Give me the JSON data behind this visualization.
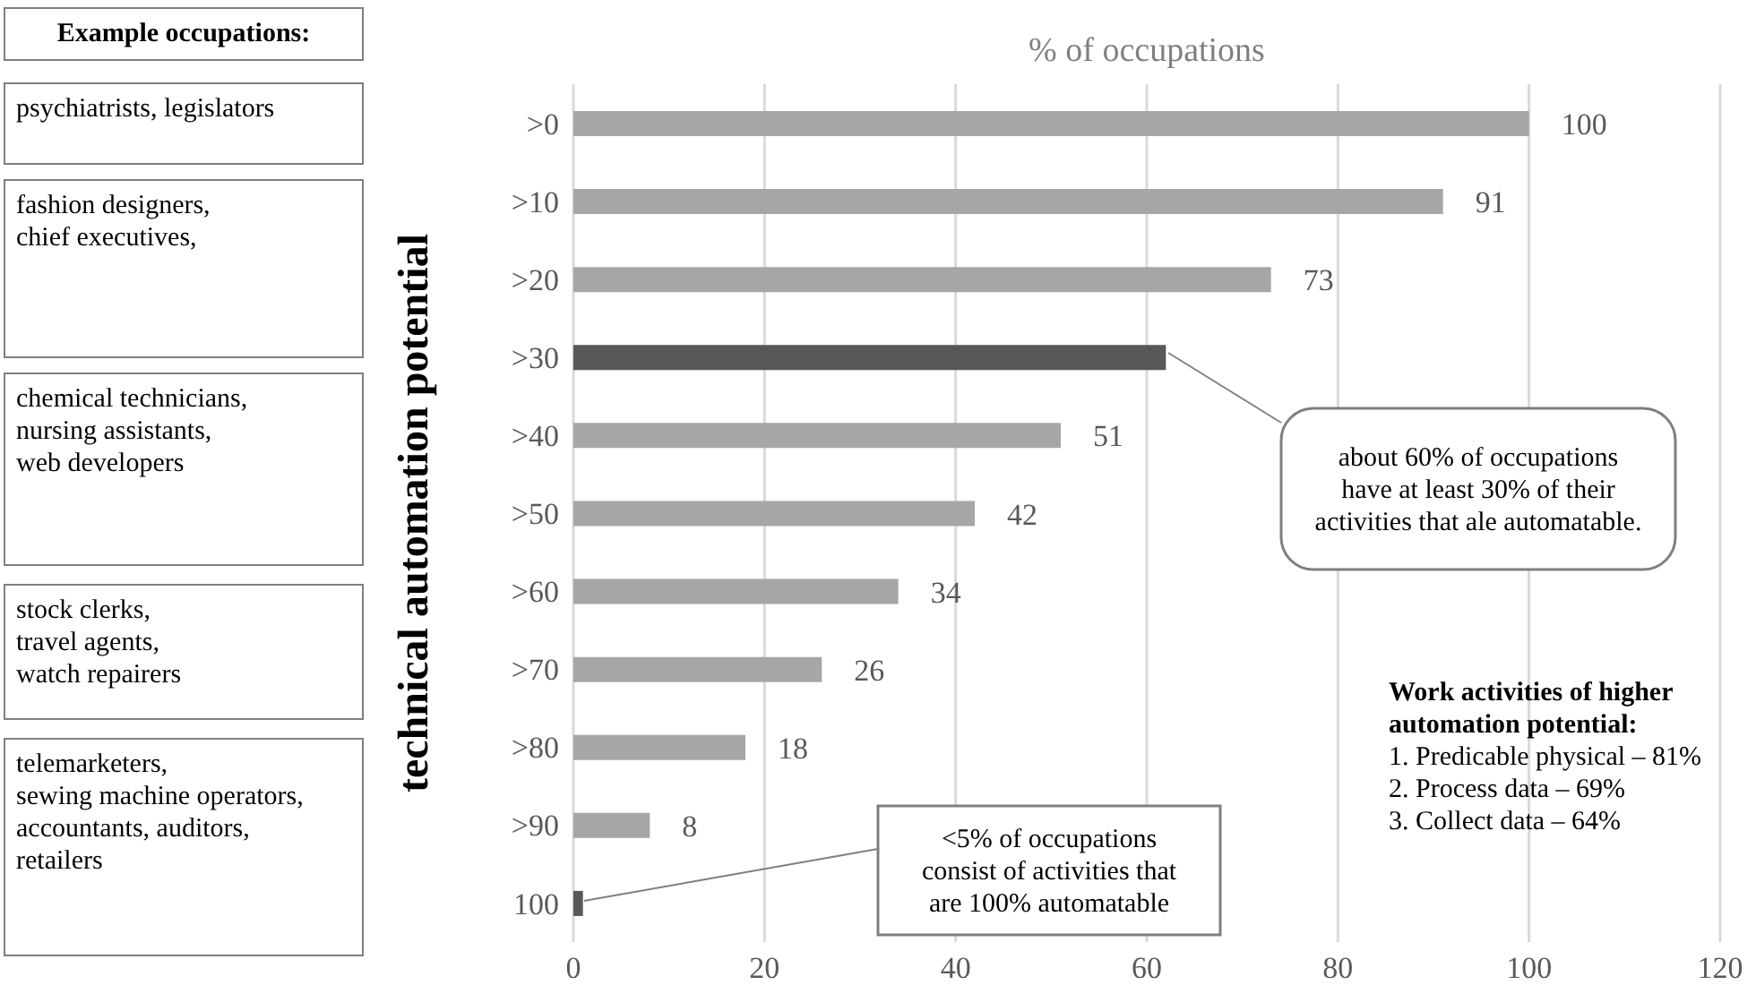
{
  "chart_data": {
    "type": "bar",
    "orientation": "horizontal",
    "title": "% of occupations",
    "ylabel": "technical automation potential",
    "categories": [
      ">0",
      ">10",
      ">20",
      ">30",
      ">40",
      ">50",
      ">60",
      ">70",
      ">80",
      ">90",
      "100"
    ],
    "values": [
      100,
      91,
      73,
      62,
      51,
      42,
      34,
      26,
      18,
      8,
      1
    ],
    "colors": [
      "#a6a6a8",
      "#a6a6a8",
      "#a6a6a8",
      "#58585a",
      "#a6a6a8",
      "#a6a6a8",
      "#a6a6a8",
      "#a6a6a8",
      "#a6a6a8",
      "#a6a6a8",
      "#58585a"
    ],
    "value_labels": [
      "100",
      "91",
      "73",
      null,
      "51",
      "42",
      "34",
      "26",
      "18",
      "8",
      null
    ],
    "xlim": [
      0,
      120
    ],
    "xticks": [
      0,
      20,
      40,
      60,
      80,
      100,
      120
    ],
    "grid": "x",
    "annotations": [
      "Example occupations:",
      "psychiatrists, legislators",
      "fashion designers,\nchief executives,",
      "chemical technicians,\nnursing assistants,\nweb developers",
      "stock clerks,\ntravel agents,\nwatch repairers",
      "telemarketers,\nsewing machine operators,\naccountants, auditors,\nretailers",
      "about 60% of occupations\nhave at least 30% of their\nactivities that ale automatable.",
      "<5% of occupations\nconsist of activities that\nare 100% automatable",
      "Work activities of higher\nautomation potential:\n1. Predicable physical – 81%\n2. Process data – 69%\n3. Collect data – 64%"
    ]
  }
}
